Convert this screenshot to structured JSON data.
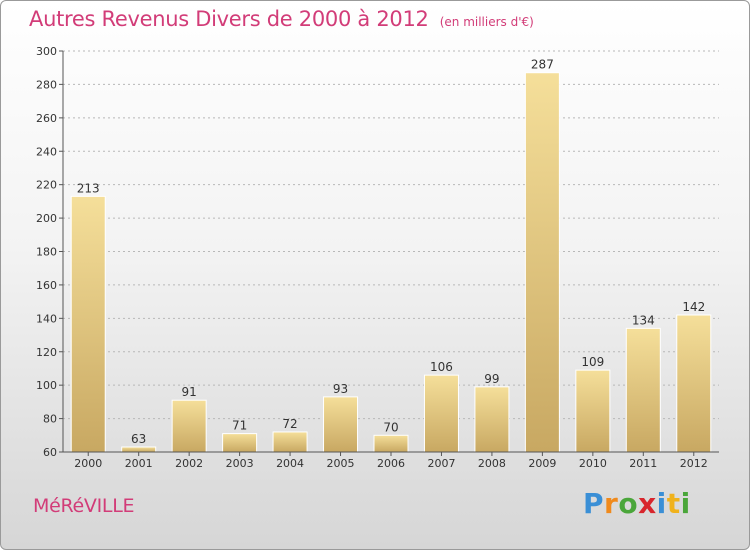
{
  "header": {
    "title": "Autres Revenus Divers de 2000 à 2012",
    "subtitle": "(en milliers d'€)"
  },
  "footer": {
    "commune": "MéRéVILLE",
    "logo_letters": [
      "P",
      "r",
      "o",
      "x",
      "i",
      "t",
      "i"
    ],
    "logo_colors": [
      "#3a8fd6",
      "#f08a1c",
      "#4aa63a",
      "#d8262d",
      "#3a8fd6",
      "#f0b21c",
      "#4aa63a"
    ]
  },
  "colors": {
    "bar_light": "#f5df9a",
    "bar_dark": "#c8a862",
    "axis": "#555555",
    "grid": "#b8b8b8"
  },
  "chart_data": {
    "type": "bar",
    "title": "Autres Revenus Divers de 2000 à 2012",
    "subtitle": "(en milliers d'€)",
    "xlabel": "",
    "ylabel": "",
    "categories": [
      "2000",
      "2001",
      "2002",
      "2003",
      "2004",
      "2005",
      "2006",
      "2007",
      "2008",
      "2009",
      "2010",
      "2011",
      "2012"
    ],
    "values": [
      213,
      63,
      91,
      71,
      72,
      93,
      70,
      106,
      99,
      287,
      109,
      134,
      142
    ],
    "ylim": [
      60,
      300
    ],
    "yticks": [
      60,
      80,
      100,
      120,
      140,
      160,
      180,
      200,
      220,
      240,
      260,
      280,
      300
    ],
    "grid": "horizontal dashed",
    "legend": "none"
  }
}
